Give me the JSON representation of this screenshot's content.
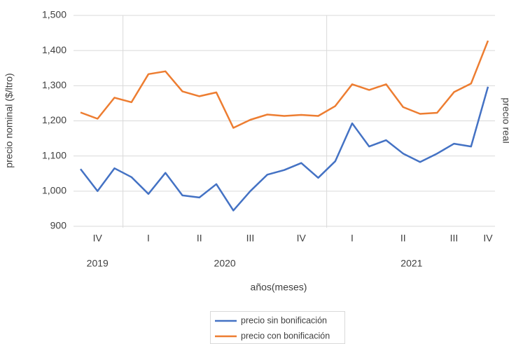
{
  "chart_data": {
    "type": "line",
    "y_label": "precio nominal ($/ltro)",
    "y2_label": "precio real",
    "x_label": "años(meses)",
    "categories": [
      null,
      "IV",
      null,
      null,
      "I",
      null,
      null,
      "II",
      null,
      null,
      "III",
      null,
      null,
      "IV",
      null,
      null,
      "I",
      null,
      null,
      "II",
      null,
      null,
      "III",
      null,
      "IV"
    ],
    "x_groups": [
      {
        "label": "2019",
        "start": 0,
        "end": 2
      },
      {
        "label": "2020",
        "start": 3,
        "end": 14
      },
      {
        "label": "2021",
        "start": 15,
        "end": 24
      }
    ],
    "series": [
      {
        "name": "precio sin bonificación",
        "color": "#4472c4",
        "values": [
          1063,
          1000,
          1065,
          1040,
          992,
          1052,
          988,
          982,
          1020,
          945,
          1000,
          1047,
          1060,
          1080,
          1038,
          1085,
          1193,
          1127,
          1145,
          1107,
          1083,
          1107,
          1135,
          1127,
          1297
        ]
      },
      {
        "name": "precio con bonificación",
        "color": "#ed7d31",
        "values": [
          1224,
          1206,
          1266,
          1253,
          1333,
          1341,
          1284,
          1270,
          1281,
          1180,
          1203,
          1218,
          1214,
          1217,
          1214,
          1242,
          1304,
          1288,
          1304,
          1239,
          1220,
          1223,
          1282,
          1306,
          1428
        ]
      }
    ],
    "ylim": [
      900,
      1500
    ],
    "yticks": [
      {
        "value": 900,
        "label": "900"
      },
      {
        "value": 1000,
        "label": "1,000"
      },
      {
        "value": 1100,
        "label": "1,100"
      },
      {
        "value": 1200,
        "label": "1,200"
      },
      {
        "value": 1300,
        "label": "1,300"
      },
      {
        "value": 1400,
        "label": "1,400"
      },
      {
        "value": 1500,
        "label": "1,500"
      }
    ],
    "grid": true,
    "legend": "bottom"
  }
}
